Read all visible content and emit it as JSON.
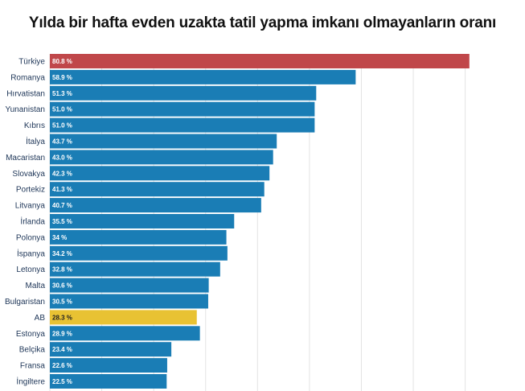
{
  "chart_data": {
    "type": "bar",
    "orientation": "horizontal",
    "title": "Yılda bir hafta evden uzakta tatil yapma imkanı olmayanların oranı",
    "categories": [
      "Türkiye",
      "Romanya",
      "Hırvatistan",
      "Yunanistan",
      "Kıbrıs",
      "İtalya",
      "Macaristan",
      "Slovakya",
      "Portekiz",
      "Litvanya",
      "İrlanda",
      "Polonya",
      "İspanya",
      "Letonya",
      "Malta",
      "Bulgaristan",
      "AB",
      "Estonya",
      "Belçika",
      "Fransa",
      "İngiltere"
    ],
    "values": [
      80.8,
      58.9,
      51.3,
      51.0,
      51.0,
      43.7,
      43.0,
      42.3,
      41.3,
      40.7,
      35.5,
      34,
      34.2,
      32.8,
      30.6,
      30.5,
      28.3,
      28.9,
      23.4,
      22.6,
      22.5
    ],
    "value_labels": [
      "80.8 %",
      "58.9 %",
      "51.3 %",
      "51.0 %",
      "51.0 %",
      "43.7 %",
      "43.0 %",
      "42.3 %",
      "41.3 %",
      "40.7 %",
      "35.5 %",
      "34 %",
      "34.2 %",
      "32.8 %",
      "30.6 %",
      "30.5 %",
      "28.3 %",
      "28.9 %",
      "23.4 %",
      "22.6 %",
      "22.5 %"
    ],
    "xlim": [
      0,
      85
    ],
    "grid": true,
    "colors": {
      "default": "#1a7db5",
      "highlight_turkey": "#c0474a",
      "highlight_eu": "#e8c233",
      "grid": "#e3e3e3",
      "value_text": "#ffffff",
      "value_text_eu": "#222222"
    },
    "bar_colors": [
      "#c0474a",
      "#1a7db5",
      "#1a7db5",
      "#1a7db5",
      "#1a7db5",
      "#1a7db5",
      "#1a7db5",
      "#1a7db5",
      "#1a7db5",
      "#1a7db5",
      "#1a7db5",
      "#1a7db5",
      "#1a7db5",
      "#1a7db5",
      "#1a7db5",
      "#1a7db5",
      "#e8c233",
      "#1a7db5",
      "#1a7db5",
      "#1a7db5",
      "#1a7db5"
    ]
  }
}
